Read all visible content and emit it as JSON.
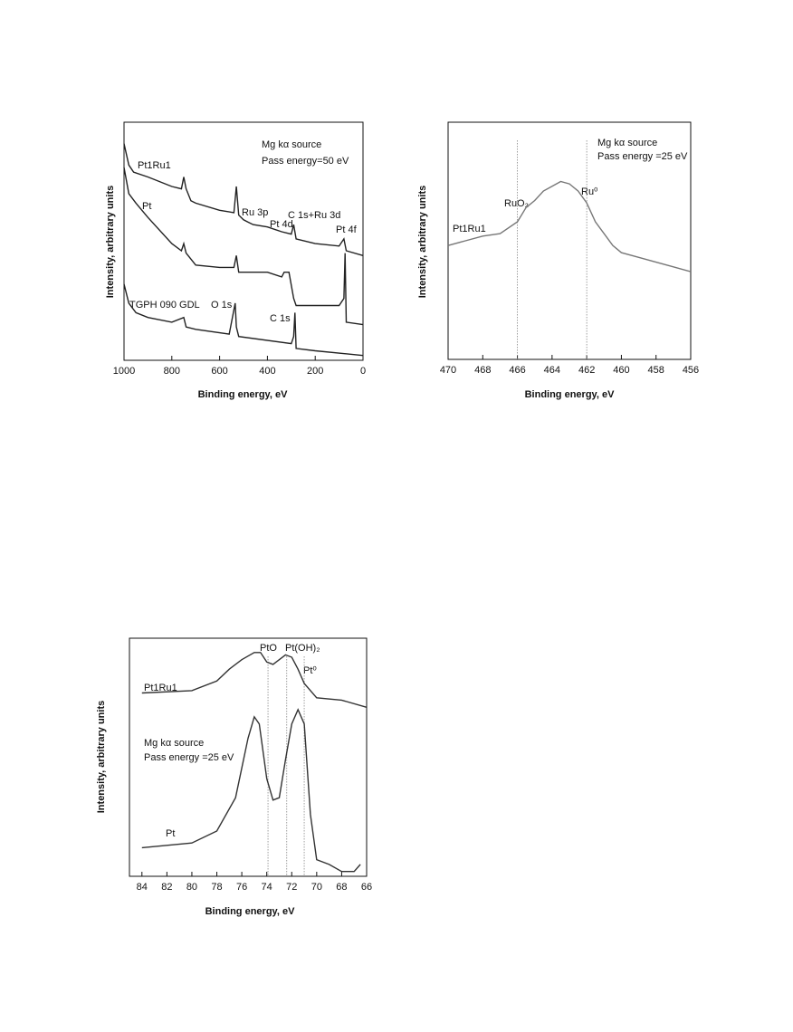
{
  "chart_data": [
    {
      "type": "line",
      "x_label": "Binding energy, eV",
      "y_label": "Intensity, arbitrary units",
      "xlim": [
        1000,
        0
      ],
      "xticks": [
        1000,
        800,
        600,
        400,
        200,
        0
      ],
      "ylim": [
        0,
        100
      ],
      "series": [
        {
          "name": "Pt1Ru1",
          "color": "#222222",
          "x": [
            1000,
            980,
            960,
            900,
            800,
            760,
            750,
            740,
            720,
            700,
            600,
            540,
            530,
            520,
            500,
            480,
            460,
            400,
            340,
            300,
            290,
            280,
            200,
            100,
            80,
            70,
            0
          ],
          "values": [
            91,
            82,
            79,
            77,
            73,
            72,
            77,
            72,
            67,
            66,
            63,
            62,
            73,
            61,
            59,
            58,
            57,
            56,
            54,
            53,
            57,
            51,
            49,
            48,
            51,
            46,
            44
          ]
        },
        {
          "name": "Pt",
          "color": "#222222",
          "x": [
            1000,
            980,
            950,
            900,
            800,
            760,
            750,
            740,
            700,
            600,
            540,
            530,
            520,
            400,
            340,
            330,
            320,
            310,
            290,
            280,
            100,
            80,
            75,
            70,
            0
          ],
          "values": [
            81,
            70,
            66,
            60,
            49,
            46,
            49,
            45,
            40,
            39,
            39,
            44,
            37,
            37,
            35,
            37,
            37,
            37,
            26,
            23,
            23,
            26,
            45,
            16,
            15
          ]
        },
        {
          "name": "TGPH 090 GDL",
          "color": "#222222",
          "x": [
            1000,
            980,
            950,
            900,
            800,
            750,
            740,
            700,
            560,
            535,
            530,
            520,
            300,
            290,
            285,
            280,
            200,
            0
          ],
          "values": [
            32,
            24,
            20,
            18,
            16,
            18,
            14,
            13,
            11,
            24,
            14,
            10,
            7,
            10,
            20,
            5,
            4,
            2
          ]
        }
      ],
      "annotations": [
        "Mg kα source",
        "Pass energy=50 eV",
        "Ru 3p",
        "Pt 4d",
        "C 1s+Ru 3d",
        "Pt 4f",
        "O 1s",
        "C 1s"
      ]
    },
    {
      "type": "line",
      "x_label": "Binding energy, eV",
      "y_label": "Intensity, arbitrary units",
      "xlim": [
        470,
        456
      ],
      "xticks": [
        470,
        468,
        466,
        464,
        462,
        460,
        458,
        456
      ],
      "ylim": [
        0,
        100
      ],
      "series": [
        {
          "name": "Pt1Ru1",
          "color": "#777777",
          "x": [
            470,
            469,
            468,
            467,
            466,
            465.5,
            465,
            464.5,
            464,
            463.5,
            463,
            462.5,
            462,
            461.5,
            461,
            460.5,
            460,
            459,
            458,
            457,
            456
          ],
          "values": [
            48,
            50,
            52,
            53,
            58,
            64,
            67,
            71,
            73,
            75,
            74,
            71,
            66,
            58,
            53,
            48,
            45,
            43,
            41,
            39,
            37
          ]
        }
      ],
      "reference_lines": [
        {
          "x": 466,
          "label": "RuO₂"
        },
        {
          "x": 462,
          "label": "Ru⁰"
        }
      ],
      "annotations": [
        "Mg kα source",
        "Pass energy =25 eV"
      ]
    },
    {
      "type": "line",
      "x_label": "Binding energy, eV",
      "y_label": "Intensity, arbitrary units",
      "xlim": [
        85,
        66
      ],
      "xticks": [
        84,
        82,
        80,
        78,
        76,
        74,
        72,
        70,
        68,
        66
      ],
      "ylim": [
        0,
        100
      ],
      "series": [
        {
          "name": "Pt1Ru1",
          "color": "#333333",
          "x": [
            84,
            80,
            78,
            77,
            76,
            75,
            74.5,
            74,
            73.5,
            73,
            72.5,
            72,
            71.5,
            71,
            70,
            68,
            66
          ],
          "values": [
            77,
            78,
            82,
            87,
            91,
            94,
            94,
            90,
            89,
            91,
            93,
            92,
            87,
            81,
            75,
            74,
            71
          ]
        },
        {
          "name": "Pt",
          "color": "#333333",
          "x": [
            84,
            80,
            78,
            76.5,
            75.5,
            75,
            74.6,
            74,
            73.5,
            73,
            72.5,
            72,
            71.5,
            71,
            70.5,
            70,
            69,
            68,
            67,
            66.5
          ],
          "values": [
            12,
            14,
            19,
            33,
            58,
            67,
            64,
            41,
            32,
            33,
            49,
            64,
            70,
            64,
            26,
            7,
            5,
            2,
            2,
            5
          ]
        }
      ],
      "reference_lines": [
        {
          "x": 73.9,
          "label": "PtO"
        },
        {
          "x": 72.4,
          "label": "Pt(OH)₂"
        },
        {
          "x": 71,
          "label": "Pt⁰"
        }
      ],
      "annotations": [
        "Mg kα source",
        "Pass energy =25 eV"
      ]
    }
  ]
}
